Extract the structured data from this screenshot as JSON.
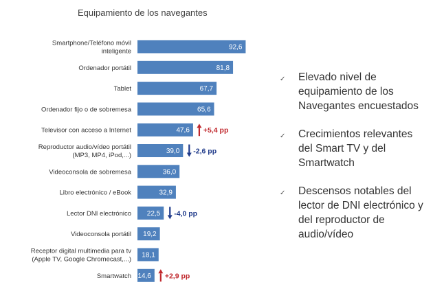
{
  "chart_data": {
    "type": "bar",
    "orientation": "horizontal",
    "title": "Equipamiento de los navegantes",
    "bar_color": "#4F81BD",
    "xlim": [
      0,
      100
    ],
    "categories": [
      [
        "Smartphone/Teléfono móvil",
        "inteligente"
      ],
      [
        "Ordenador portátil"
      ],
      [
        "Tablet"
      ],
      [
        "Ordenador fijo o de sobremesa"
      ],
      [
        "Televisor con acceso a Internet"
      ],
      [
        "Reproductor audio/vídeo portátil",
        "(MP3, MP4, iPod,...)"
      ],
      [
        "Videoconsola de sobremesa"
      ],
      [
        "Libro electrónico / eBook"
      ],
      [
        "Lector DNI electrónico"
      ],
      [
        "Videoconsola portátil"
      ],
      [
        "Receptor digital multimedia para tv",
        "(Apple TV, Google Chromecast,...)"
      ],
      [
        "Smartwatch"
      ]
    ],
    "values": [
      92.6,
      81.8,
      67.7,
      65.6,
      47.6,
      39.0,
      36.0,
      32.9,
      22.5,
      19.2,
      18.1,
      14.6
    ],
    "value_labels": [
      "92,6",
      "81,8",
      "67,7",
      "65,6",
      "47,6",
      "39,0",
      "36,0",
      "32,9",
      "22,5",
      "19,2",
      "18,1",
      "14,6"
    ],
    "annotations": [
      {
        "index": 4,
        "direction": "up",
        "text": "+5,4 pp",
        "color": "#C0282D"
      },
      {
        "index": 5,
        "direction": "down",
        "text": "-2,6 pp",
        "color": "#1F3A8A"
      },
      {
        "index": 8,
        "direction": "down",
        "text": "-4,0 pp",
        "color": "#1F3A8A"
      },
      {
        "index": 11,
        "direction": "up",
        "text": "+2,9 pp",
        "color": "#C0282D"
      }
    ]
  },
  "bullets": [
    {
      "mark": "✓",
      "text": "Elevado nivel de equipamiento de los Navegantes encuestados"
    },
    {
      "mark": "✓",
      "text": "Crecimientos relevantes del  Smart TV y del Smartwatch"
    },
    {
      "mark": "✓",
      "text": "Descensos notables del lector de DNI electrónico y del reproductor de audio/vídeo"
    }
  ]
}
